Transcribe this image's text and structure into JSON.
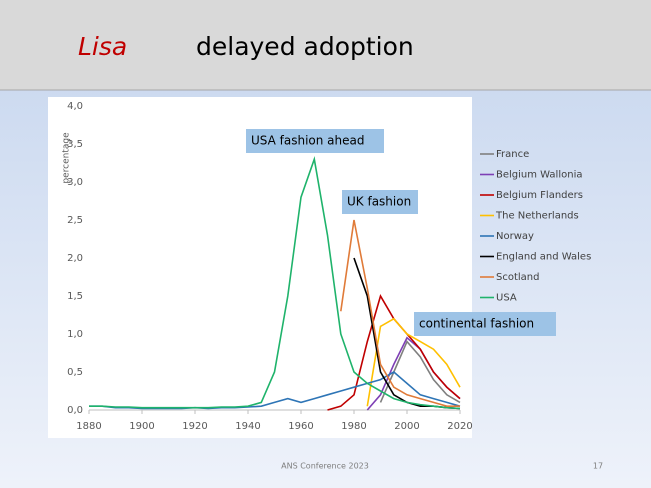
{
  "slide": {
    "title_name": "Lisa",
    "title_rest": "delayed adoption",
    "footer": "ANS Conference 2023",
    "page_number": "17"
  },
  "chart_data": {
    "type": "line",
    "ylabel": "percentage",
    "annotations": [
      "USA fashion ahead",
      "UK fashion",
      "continental fashion"
    ],
    "x": [
      1880,
      1885,
      1890,
      1895,
      1900,
      1905,
      1910,
      1915,
      1920,
      1925,
      1930,
      1935,
      1940,
      1945,
      1950,
      1955,
      1960,
      1965,
      1970,
      1975,
      1980,
      1985,
      1990,
      1995,
      2000,
      2005,
      2010,
      2015,
      2020
    ],
    "xlim": [
      1880,
      2020
    ],
    "xticks": [
      1880,
      1900,
      1920,
      1940,
      1960,
      1980,
      2000,
      2020
    ],
    "ylim": [
      0,
      4
    ],
    "yticks": [
      {
        "value": 0,
        "label": "0,0"
      },
      {
        "value": 0.5,
        "label": "0,5"
      },
      {
        "value": 1,
        "label": "1,0"
      },
      {
        "value": 1.5,
        "label": "1,5"
      },
      {
        "value": 2,
        "label": "2,0"
      },
      {
        "value": 2.5,
        "label": "2,5"
      },
      {
        "value": 3,
        "label": "3,0"
      },
      {
        "value": 3.5,
        "label": "3,5"
      },
      {
        "value": 4,
        "label": "4,0"
      }
    ],
    "series": [
      {
        "name": "France",
        "color": "#7f7f7f",
        "values": [
          null,
          null,
          null,
          null,
          null,
          null,
          null,
          null,
          null,
          null,
          null,
          null,
          null,
          null,
          null,
          null,
          null,
          null,
          null,
          null,
          null,
          null,
          0.1,
          0.5,
          0.9,
          0.7,
          0.4,
          0.2,
          0.1
        ]
      },
      {
        "name": "Belgium Wallonia",
        "color": "#7e3fb5",
        "values": [
          null,
          null,
          null,
          null,
          null,
          null,
          null,
          null,
          null,
          null,
          null,
          null,
          null,
          null,
          null,
          null,
          null,
          null,
          null,
          null,
          null,
          0.0,
          0.2,
          0.6,
          0.95,
          0.8,
          0.5,
          0.3,
          0.15
        ]
      },
      {
        "name": "Belgium Flanders",
        "color": "#c00000",
        "values": [
          null,
          null,
          null,
          null,
          null,
          null,
          null,
          null,
          null,
          null,
          null,
          null,
          null,
          null,
          null,
          null,
          null,
          null,
          0.0,
          0.05,
          0.2,
          0.9,
          1.5,
          1.2,
          1.0,
          0.8,
          0.5,
          0.3,
          0.15
        ]
      },
      {
        "name": "The Netherlands",
        "color": "#ffc000",
        "values": [
          null,
          null,
          null,
          null,
          null,
          null,
          null,
          null,
          null,
          null,
          null,
          null,
          null,
          null,
          null,
          null,
          null,
          null,
          null,
          null,
          null,
          0.05,
          1.1,
          1.2,
          1.0,
          0.9,
          0.8,
          0.6,
          0.3
        ]
      },
      {
        "name": "Norway",
        "color": "#2e75b6",
        "values": [
          0.05,
          0.05,
          0.03,
          0.03,
          0.02,
          0.02,
          0.02,
          0.02,
          0.03,
          0.02,
          0.03,
          0.03,
          0.04,
          0.05,
          0.1,
          0.15,
          0.1,
          0.15,
          0.2,
          0.25,
          0.3,
          0.35,
          0.4,
          0.5,
          0.35,
          0.2,
          0.15,
          0.1,
          0.05
        ]
      },
      {
        "name": "England and Wales",
        "color": "#000000",
        "values": [
          null,
          null,
          null,
          null,
          null,
          null,
          null,
          null,
          null,
          null,
          null,
          null,
          null,
          null,
          null,
          null,
          null,
          null,
          null,
          null,
          2.0,
          1.5,
          0.5,
          0.2,
          0.1,
          0.05,
          0.05,
          0.03,
          0.02
        ]
      },
      {
        "name": "Scotland",
        "color": "#e07b39",
        "values": [
          null,
          null,
          null,
          null,
          null,
          null,
          null,
          null,
          null,
          null,
          null,
          null,
          null,
          null,
          null,
          null,
          null,
          null,
          null,
          1.3,
          2.5,
          1.6,
          0.6,
          0.3,
          0.2,
          0.15,
          0.1,
          0.05,
          0.05
        ]
      },
      {
        "name": "USA",
        "color": "#1fb36b",
        "values": [
          0.05,
          0.05,
          0.04,
          0.04,
          0.03,
          0.03,
          0.03,
          0.03,
          0.03,
          0.03,
          0.04,
          0.04,
          0.05,
          0.1,
          0.5,
          1.5,
          2.8,
          3.3,
          2.3,
          1.0,
          0.5,
          0.35,
          0.25,
          0.15,
          0.1,
          0.07,
          0.05,
          0.03,
          0.02
        ]
      }
    ]
  }
}
